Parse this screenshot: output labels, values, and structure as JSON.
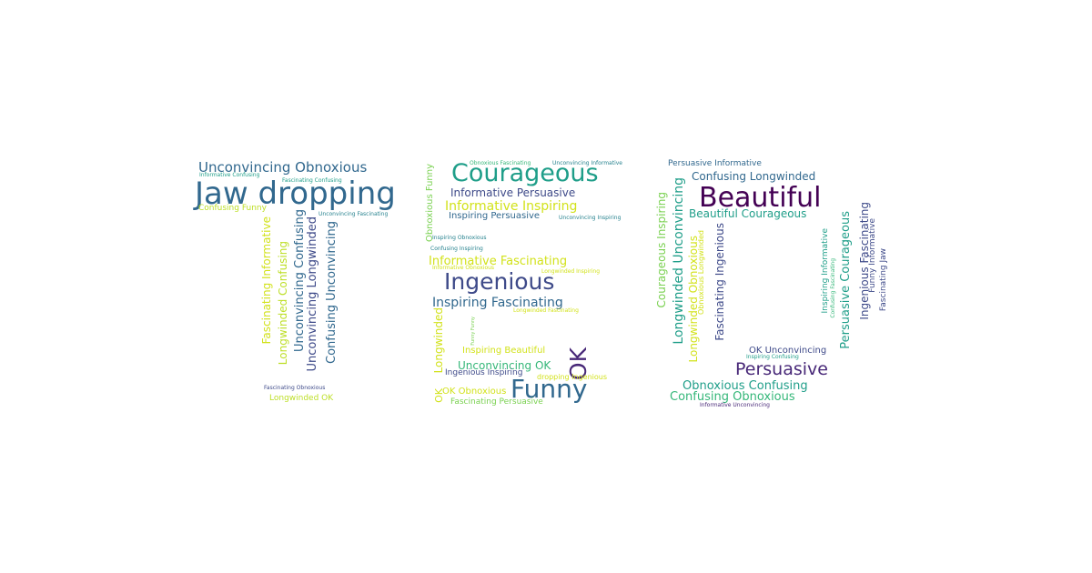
{
  "palette": {
    "c1": "#2a788e",
    "c2": "#22a884",
    "c3": "#bddf26",
    "c4": "#7ad151",
    "c5": "#440154",
    "c6": "#482878",
    "c7": "#3e4a89",
    "c8": "#31688e",
    "c9": "#26828e",
    "c10": "#1f9e89",
    "c11": "#35b779",
    "c12": "#d2e21b"
  },
  "words": [
    {
      "text": "Unconvincing Obnoxious",
      "color": "c8"
    },
    {
      "text": "Informative Confusing",
      "color": "c10"
    },
    {
      "text": "Fascinating Confusing",
      "color": "c10"
    },
    {
      "text": "Jaw dropping",
      "color": "c8"
    },
    {
      "text": "Confusing Funny",
      "color": "c3"
    },
    {
      "text": "Unconvincing Fascinating",
      "color": "c9"
    },
    {
      "text": "Fascinating Informative",
      "color": "c12"
    },
    {
      "text": "Longwinded Confusing",
      "color": "c3"
    },
    {
      "text": "Unconvincing Confusing",
      "color": "c8"
    },
    {
      "text": "Unconvincing Longwinded",
      "color": "c7"
    },
    {
      "text": "Confusing Unconvincing",
      "color": "c8"
    },
    {
      "text": "Fascinating Obnoxious",
      "color": "c7"
    },
    {
      "text": "Longwinded OK",
      "color": "c3"
    },
    {
      "text": "Obnoxious Fascinating",
      "color": "c11"
    },
    {
      "text": "Unconvincing Informative",
      "color": "c9"
    },
    {
      "text": "Courageous",
      "color": "c10"
    },
    {
      "text": "Informative Persuasive",
      "color": "c7"
    },
    {
      "text": "Informative Inspiring",
      "color": "c12"
    },
    {
      "text": "Inspiring Persuasive",
      "color": "c8"
    },
    {
      "text": "Unconvincing Inspiring",
      "color": "c9"
    },
    {
      "text": "Obnoxious Funny",
      "color": "c4"
    },
    {
      "text": "Inspiring Obnoxious",
      "color": "c9"
    },
    {
      "text": "Confusing Inspiring",
      "color": "c9"
    },
    {
      "text": "Informative Fascinating",
      "color": "c12"
    },
    {
      "text": "Informative Obnoxious",
      "color": "c12"
    },
    {
      "text": "Longwinded Inspiring",
      "color": "c12"
    },
    {
      "text": "Ingenious",
      "color": "c7"
    },
    {
      "text": "Inspiring Fascinating",
      "color": "c8"
    },
    {
      "text": "Longwinded Fascinating",
      "color": "c12"
    },
    {
      "text": "Longwinded",
      "color": "c12"
    },
    {
      "text": "Funny Funny",
      "color": "c4"
    },
    {
      "text": "Inspiring Beautiful",
      "color": "c12"
    },
    {
      "text": "OK",
      "color": "c6"
    },
    {
      "text": "Unconvincing OK",
      "color": "c11"
    },
    {
      "text": "Ingenious Inspiring",
      "color": "c7"
    },
    {
      "text": "dropping Ingenious",
      "color": "c12"
    },
    {
      "text": "OK",
      "color": "c12"
    },
    {
      "text": "OK Obnoxious",
      "color": "c12"
    },
    {
      "text": "Funny",
      "color": "c8"
    },
    {
      "text": "Fascinating Persuasive",
      "color": "c4"
    },
    {
      "text": "Persuasive Informative",
      "color": "c8"
    },
    {
      "text": "Confusing Longwinded",
      "color": "c8"
    },
    {
      "text": "Beautiful",
      "color": "c5"
    },
    {
      "text": "Beautiful Courageous",
      "color": "c10"
    },
    {
      "text": "Courageous Inspiring",
      "color": "c4"
    },
    {
      "text": "Longwinded Unconvincing",
      "color": "c10"
    },
    {
      "text": "Longwinded Obnoxious",
      "color": "c12"
    },
    {
      "text": "Obnoxious Longwinded",
      "color": "c12"
    },
    {
      "text": "Fascinating Ingenious",
      "color": "c7"
    },
    {
      "text": "Inspiring Informative",
      "color": "c10"
    },
    {
      "text": "Confusing Fascinating",
      "color": "c11"
    },
    {
      "text": "Persuasive Courageous",
      "color": "c10"
    },
    {
      "text": "Ingenious Fascinating",
      "color": "c7"
    },
    {
      "text": "Funny Informative",
      "color": "c7"
    },
    {
      "text": "Fascinating Jaw",
      "color": "c7"
    },
    {
      "text": "OK Unconvincing",
      "color": "c7"
    },
    {
      "text": "Inspiring Confusing",
      "color": "c10"
    },
    {
      "text": "Persuasive",
      "color": "c6"
    },
    {
      "text": "Obnoxious Confusing",
      "color": "c10"
    },
    {
      "text": "Confusing Obnoxious",
      "color": "c11"
    },
    {
      "text": "Informative Unconvincing",
      "color": "c6"
    }
  ]
}
